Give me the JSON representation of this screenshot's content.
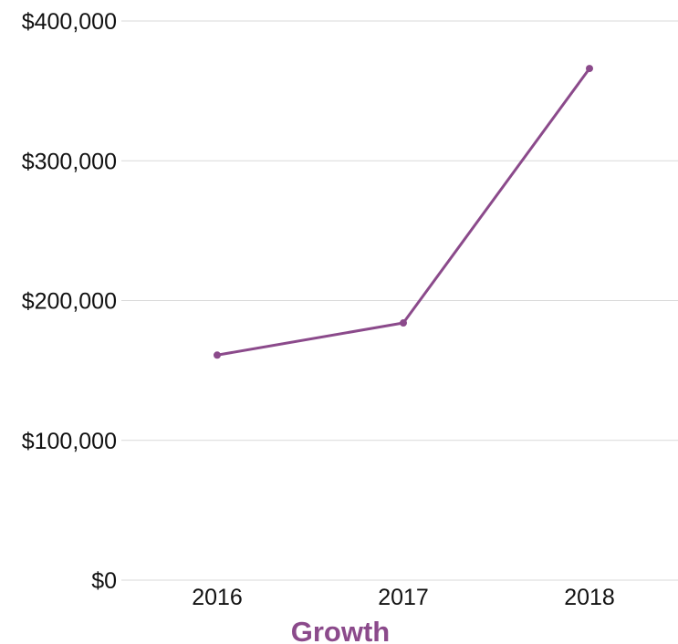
{
  "chart_data": {
    "type": "line",
    "title": "Growth",
    "xlabel": "",
    "ylabel": "",
    "categories": [
      "2016",
      "2017",
      "2018"
    ],
    "series": [
      {
        "values": [
          161000,
          184000,
          366000
        ]
      }
    ],
    "ylim": [
      0,
      400000
    ],
    "yticks": [
      0,
      100000,
      200000,
      300000,
      400000
    ],
    "ytick_labels": [
      "$0",
      "$100,000",
      "$200,000",
      "$300,000",
      "$400,000"
    ],
    "grid": true,
    "legend": "none",
    "colors": {
      "series": "#8b4a8b",
      "title": "#8b4a8b",
      "grid": "#d9d9d9",
      "text": "#111111"
    }
  }
}
